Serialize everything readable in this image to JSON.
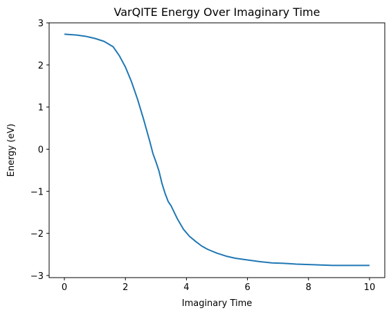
{
  "chart_data": {
    "type": "line",
    "title": "VarQITE Energy Over Imaginary Time",
    "xlabel": "Imaginary Time",
    "ylabel": "Energy (eV)",
    "xlim": [
      -0.5,
      10.5
    ],
    "ylim": [
      -3.05,
      3
    ],
    "x_ticks": [
      0,
      2,
      4,
      6,
      8,
      10
    ],
    "y_ticks": [
      -3,
      -2,
      -1,
      0,
      1,
      2,
      3
    ],
    "x_tick_labels": [
      "0",
      "2",
      "4",
      "6",
      "8",
      "10"
    ],
    "y_tick_labels": [
      "−3",
      "−2",
      "−1",
      "0",
      "1",
      "2",
      "3"
    ],
    "grid": false,
    "series": [
      {
        "color": "#1f77b4",
        "x": [
          0,
          0.4,
          0.7,
          1.0,
          1.3,
          1.6,
          1.8,
          2.0,
          2.2,
          2.4,
          2.6,
          2.8,
          2.9,
          3.0,
          3.1,
          3.2,
          3.3,
          3.4,
          3.5,
          3.7,
          3.9,
          4.1,
          4.3,
          4.5,
          4.7,
          5.0,
          5.3,
          5.6,
          6.0,
          6.4,
          6.8,
          7.2,
          7.6,
          8.0,
          8.4,
          8.8,
          9.2,
          9.6,
          10.0
        ],
        "y": [
          2.73,
          2.71,
          2.68,
          2.63,
          2.56,
          2.43,
          2.22,
          1.95,
          1.6,
          1.18,
          0.7,
          0.18,
          -0.1,
          -0.3,
          -0.52,
          -0.82,
          -1.05,
          -1.24,
          -1.35,
          -1.65,
          -1.9,
          -2.07,
          -2.19,
          -2.3,
          -2.38,
          -2.47,
          -2.54,
          -2.59,
          -2.63,
          -2.67,
          -2.7,
          -2.71,
          -2.73,
          -2.74,
          -2.75,
          -2.76,
          -2.76,
          -2.76,
          -2.76
        ]
      }
    ]
  }
}
